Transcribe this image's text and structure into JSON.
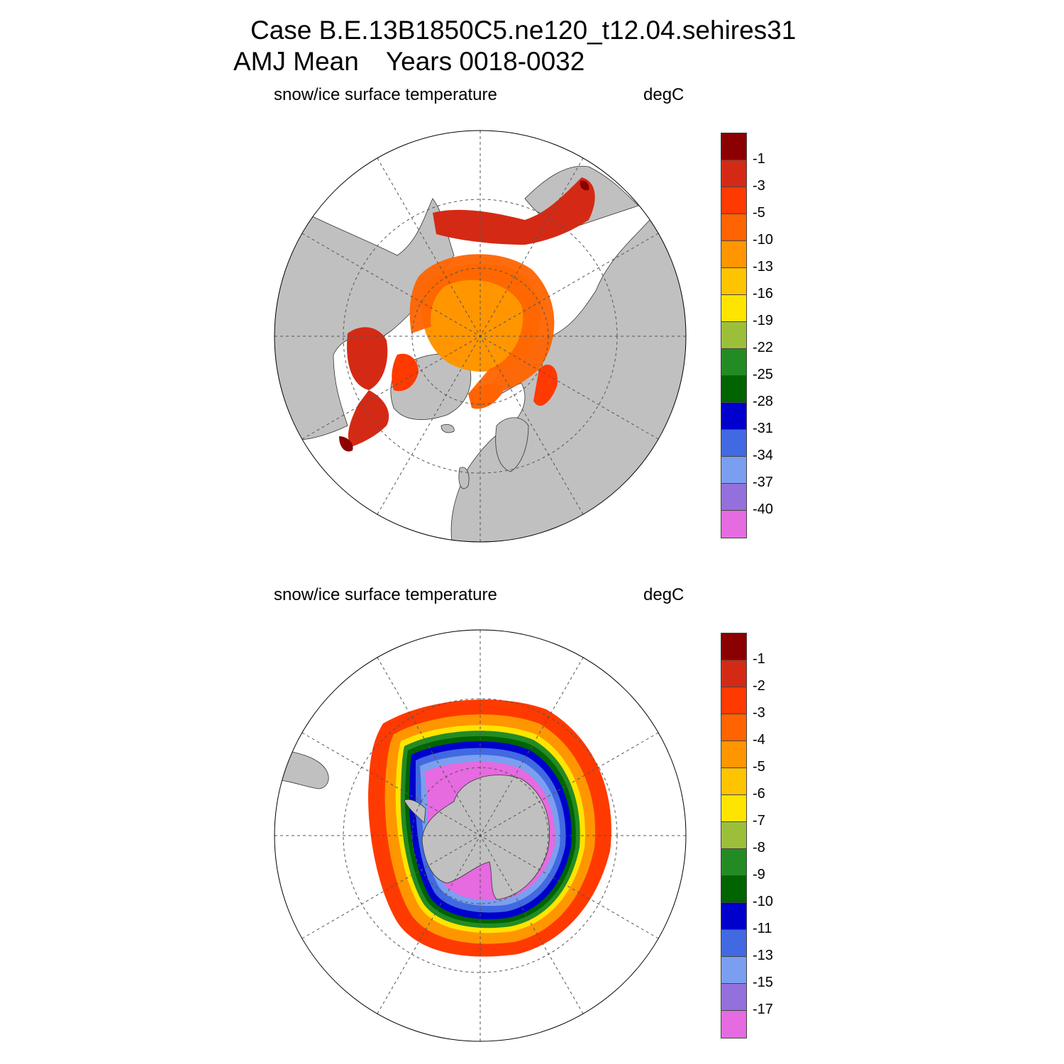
{
  "header": {
    "case_line": "Case B.E.13B1850C5.ne120_t12.04.sehires31",
    "season": "AMJ Mean",
    "years": "Years 0018-0032"
  },
  "panels": [
    {
      "hemisphere": "north",
      "variable": "snow/ice surface temperature",
      "units": "degC",
      "legend": {
        "colors": [
          "#8b0000",
          "#d42a15",
          "#ff3a00",
          "#ff6400",
          "#ff9600",
          "#ffc400",
          "#ffe400",
          "#9cbf3a",
          "#238b23",
          "#006400",
          "#0000cd",
          "#4169e1",
          "#7b9ff0",
          "#9370db",
          "#e66ae0"
        ],
        "labels": [
          "-1",
          "-3",
          "-5",
          "-10",
          "-13",
          "-16",
          "-19",
          "-22",
          "-25",
          "-28",
          "-31",
          "-34",
          "-37",
          "-40"
        ]
      }
    },
    {
      "hemisphere": "south",
      "variable": "snow/ice surface temperature",
      "units": "degC",
      "legend": {
        "colors": [
          "#8b0000",
          "#d42a15",
          "#ff3a00",
          "#ff6400",
          "#ff9600",
          "#ffc400",
          "#ffe400",
          "#9cbf3a",
          "#238b23",
          "#006400",
          "#0000cd",
          "#4169e1",
          "#7b9ff0",
          "#9370db",
          "#e66ae0"
        ],
        "labels": [
          "-1",
          "-2",
          "-3",
          "-4",
          "-5",
          "-6",
          "-7",
          "-8",
          "-9",
          "-10",
          "-11",
          "-13",
          "-15",
          "-17"
        ]
      }
    }
  ],
  "colors": {
    "land": "#c0c0c0",
    "ocean": "#ffffff",
    "grid": "#555555"
  }
}
